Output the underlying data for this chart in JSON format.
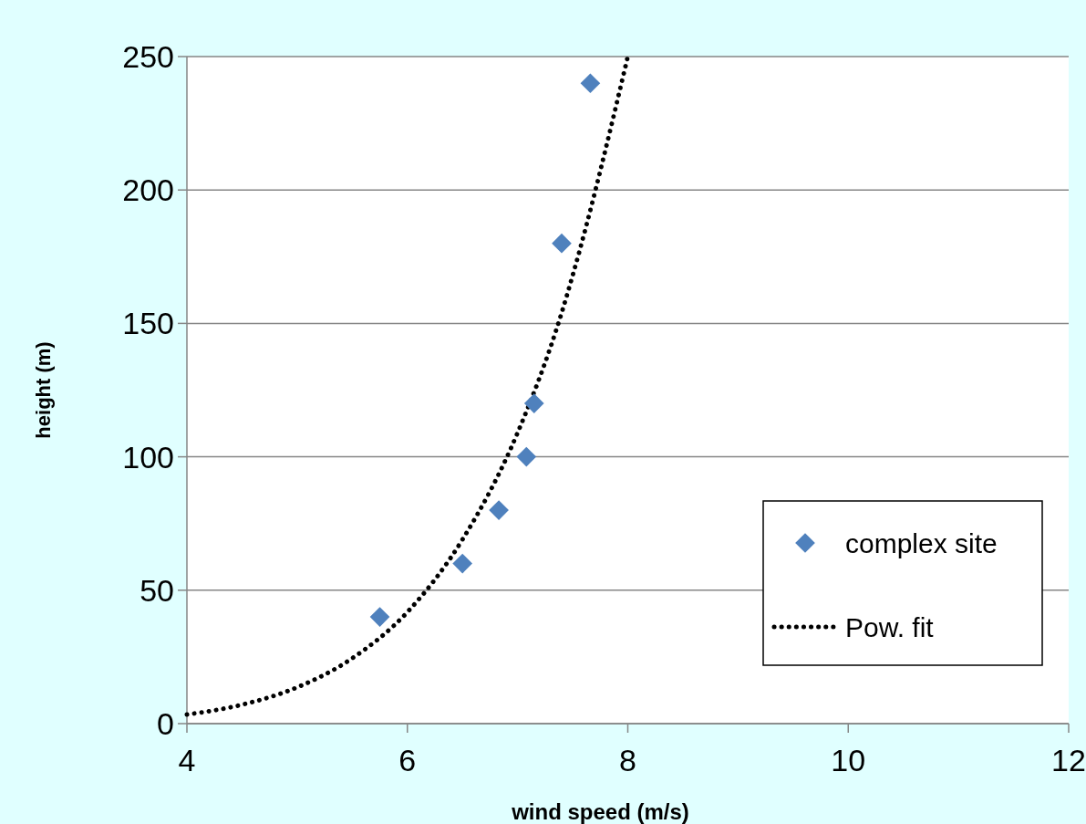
{
  "chart_data": {
    "type": "scatter",
    "xlabel": "wind speed (m/s)",
    "ylabel": "height (m)",
    "xlim": [
      4,
      12
    ],
    "xticks": [
      4,
      6,
      8,
      10,
      12
    ],
    "ylim": [
      0,
      250
    ],
    "yticks": [
      0,
      50,
      100,
      150,
      200,
      250
    ],
    "grid": "y",
    "legend": "right",
    "series": [
      {
        "name": "complex site",
        "marker": "diamond",
        "color": "#4f81bd",
        "x": [
          5.75,
          6.5,
          6.83,
          7.08,
          7.15,
          7.4,
          7.66
        ],
        "values": [
          40,
          60,
          80,
          100,
          120,
          180,
          240
        ]
      },
      {
        "name": "Pow. fit",
        "type": "line",
        "marker": "none",
        "line_style": "dotted",
        "color": "#000000",
        "x": [
          4,
          4.5,
          5,
          5.5,
          6,
          6.5,
          7,
          7.4,
          7.5,
          8
        ],
        "values": [
          3.4,
          7.1,
          13.6,
          24.5,
          41.8,
          69,
          109,
          154,
          168,
          250
        ]
      }
    ]
  }
}
